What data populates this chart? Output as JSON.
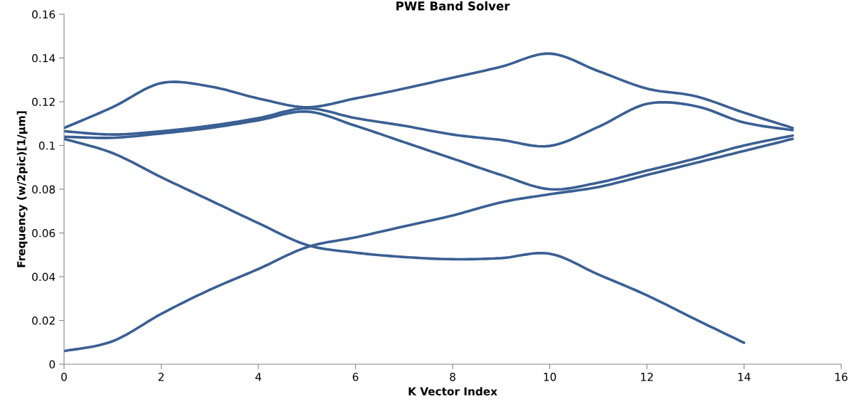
{
  "chart_data": {
    "type": "line",
    "title": "PWE Band Solver",
    "xlabel": "K Vector Index",
    "ylabel": "Frequency (w/2pic)[1/µm]",
    "x": [
      0,
      1,
      2,
      3,
      4,
      5,
      6,
      7,
      8,
      9,
      10,
      11,
      12,
      13,
      14,
      15
    ],
    "series": [
      {
        "color": "#3a5f93",
        "values": [
          0.006,
          0.0105,
          0.023,
          0.034,
          0.0435,
          0.0535,
          0.058,
          0.063,
          0.068,
          0.074,
          0.0777,
          0.081,
          0.0865,
          0.092,
          0.0975,
          0.103
        ]
      },
      {
        "color": "#3a5f93",
        "values": [
          0.103,
          0.0965,
          0.0855,
          0.075,
          0.0645,
          0.0545,
          0.051,
          0.049,
          0.048,
          0.0485,
          0.0505,
          0.041,
          0.0315,
          0.0205,
          0.0098,
          null
        ]
      },
      {
        "color": "#3a5f93",
        "values": [
          0.104,
          0.1035,
          0.1055,
          0.108,
          0.1115,
          0.1155,
          0.109,
          0.1015,
          0.094,
          0.0865,
          0.08,
          0.083,
          0.0885,
          0.094,
          0.1,
          0.1045
        ]
      },
      {
        "color": "#3a5f93",
        "values": [
          0.1065,
          0.105,
          0.1065,
          0.109,
          0.1125,
          0.117,
          0.1125,
          0.109,
          0.105,
          0.1025,
          0.0998,
          0.1085,
          0.119,
          0.118,
          0.1105,
          0.107
        ]
      },
      {
        "color": "#3a5f93",
        "values": [
          0.108,
          0.1175,
          0.1285,
          0.127,
          0.1215,
          0.1175,
          0.1215,
          0.126,
          0.131,
          0.136,
          0.142,
          0.134,
          0.126,
          0.1225,
          0.115,
          0.108
        ]
      }
    ],
    "xlim": [
      0,
      16
    ],
    "xticks": [
      0,
      2,
      4,
      6,
      8,
      10,
      12,
      14,
      16
    ],
    "ylim": [
      0,
      0.16
    ],
    "yticks": [
      0,
      0.02,
      0.04,
      0.06,
      0.08,
      0.1,
      0.12,
      0.14,
      0.16
    ],
    "grid": false,
    "marker": "none",
    "line_style": "solid"
  }
}
